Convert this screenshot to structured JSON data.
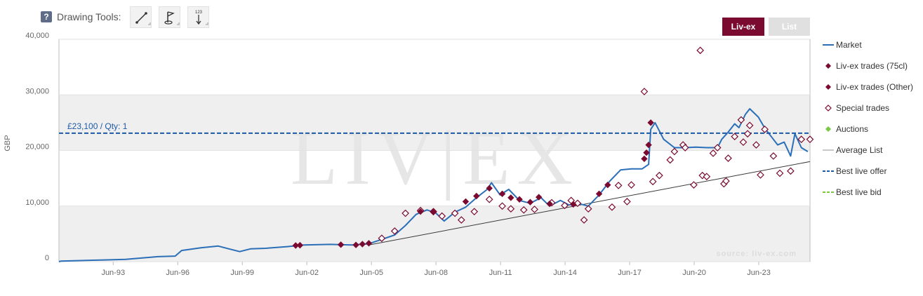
{
  "toolbar": {
    "help_label": "?",
    "title": "Drawing Tools:",
    "tools": [
      {
        "name": "line-tool",
        "label": ""
      },
      {
        "name": "flag-tool",
        "label": ""
      },
      {
        "name": "measure-tool",
        "label": "123"
      }
    ]
  },
  "view_toggle": {
    "livex_label": "Liv-ex",
    "list_label": "List"
  },
  "colors": {
    "market": "#2a6fb8",
    "trade": "#7a0a30",
    "auction": "#7ac943",
    "average": "#c8c8c8",
    "best_offer": "#1c5aa6",
    "best_bid": "#7ac943",
    "band": "#efefef"
  },
  "chart_data": {
    "type": "line",
    "ylabel": "GBP",
    "ylim": [
      0,
      40000
    ],
    "yticks": [
      0,
      10000,
      20000,
      30000,
      40000
    ],
    "ytick_labels": [
      "0",
      "10,000",
      "20,000",
      "30,000",
      "40,000"
    ],
    "xlim": [
      1990.9,
      2025.8
    ],
    "xticks": [
      1993.42,
      1996.42,
      1999.42,
      2002.42,
      2005.42,
      2008.42,
      2011.42,
      2014.42,
      2017.42,
      2020.42,
      2023.42
    ],
    "xtick_labels": [
      "Jun-93",
      "Jun-96",
      "Jun-99",
      "Jun-02",
      "Jun-05",
      "Jun-08",
      "Jun-11",
      "Jun-14",
      "Jun-17",
      "Jun-20",
      "Jun-23"
    ],
    "watermark": "LIV|EX",
    "source_text": "source: liv-ex.com",
    "best_offer": {
      "value": 23100,
      "label": "£23,100 / Qty: 1"
    },
    "legend": [
      "Market",
      "Liv-ex trades (75cl)",
      "Liv-ex trades (Other)",
      "Special trades",
      "Auctions",
      "Average List",
      "Best live offer",
      "Best live bid"
    ],
    "market": [
      [
        1990.9,
        0
      ],
      [
        1991,
        100
      ],
      [
        1993,
        300
      ],
      [
        1994,
        400
      ],
      [
        1995.5,
        900
      ],
      [
        1996.3,
        1000
      ],
      [
        1996.6,
        2000
      ],
      [
        1997.5,
        2500
      ],
      [
        1998.3,
        2800
      ],
      [
        1998.8,
        2300
      ],
      [
        1999.3,
        1800
      ],
      [
        1999.8,
        2300
      ],
      [
        2000.5,
        2400
      ],
      [
        2001.5,
        2700
      ],
      [
        2002.3,
        3000
      ],
      [
        2003.5,
        3100
      ],
      [
        2004.5,
        3000
      ],
      [
        2005.3,
        3200
      ],
      [
        2005.9,
        4000
      ],
      [
        2006.5,
        4800
      ],
      [
        2007.0,
        6500
      ],
      [
        2007.5,
        8500
      ],
      [
        2008.0,
        9300
      ],
      [
        2008.4,
        8800
      ],
      [
        2008.8,
        7300
      ],
      [
        2009.3,
        8900
      ],
      [
        2009.8,
        9800
      ],
      [
        2010.3,
        11500
      ],
      [
        2010.8,
        13000
      ],
      [
        2011.0,
        14200
      ],
      [
        2011.4,
        12000
      ],
      [
        2011.8,
        13000
      ],
      [
        2012.3,
        11000
      ],
      [
        2012.8,
        10500
      ],
      [
        2013.3,
        11500
      ],
      [
        2013.7,
        10000
      ],
      [
        2014.2,
        11000
      ],
      [
        2014.6,
        10200
      ],
      [
        2015.0,
        10500
      ],
      [
        2015.5,
        10000
      ],
      [
        2016.0,
        12000
      ],
      [
        2016.5,
        14500
      ],
      [
        2017.0,
        16500
      ],
      [
        2017.5,
        16700
      ],
      [
        2018.0,
        16700
      ],
      [
        2018.3,
        17500
      ],
      [
        2018.4,
        23800
      ],
      [
        2018.6,
        25000
      ],
      [
        2019.0,
        22000
      ],
      [
        2019.5,
        20500
      ],
      [
        2020.0,
        20500
      ],
      [
        2020.5,
        20600
      ],
      [
        2021.0,
        20500
      ],
      [
        2021.5,
        20500
      ],
      [
        2021.7,
        22000
      ],
      [
        2022.0,
        23300
      ],
      [
        2022.3,
        24800
      ],
      [
        2022.5,
        24100
      ],
      [
        2022.8,
        26500
      ],
      [
        2023.0,
        27500
      ],
      [
        2023.4,
        26000
      ],
      [
        2023.7,
        24000
      ],
      [
        2024.0,
        22500
      ],
      [
        2024.3,
        21000
      ],
      [
        2024.6,
        21500
      ],
      [
        2024.9,
        19000
      ],
      [
        2025.1,
        23000
      ],
      [
        2025.4,
        20500
      ],
      [
        2025.7,
        19800
      ]
    ],
    "average_list": [
      [
        2005.3,
        3000
      ],
      [
        2025.8,
        18000
      ]
    ],
    "liv_ex_trades": [
      [
        2001.9,
        2900
      ],
      [
        2002.1,
        2950
      ],
      [
        2004.0,
        3050
      ],
      [
        2004.7,
        3000
      ],
      [
        2005.0,
        3150
      ],
      [
        2005.3,
        3300
      ],
      [
        2007.7,
        9000
      ],
      [
        2008.3,
        8900
      ],
      [
        2009.8,
        10800
      ],
      [
        2010.3,
        11800
      ],
      [
        2010.9,
        13200
      ],
      [
        2011.5,
        12200
      ],
      [
        2011.9,
        11500
      ],
      [
        2012.3,
        11200
      ],
      [
        2012.8,
        10700
      ],
      [
        2013.2,
        11600
      ],
      [
        2013.7,
        10400
      ],
      [
        2014.8,
        10300
      ],
      [
        2016.0,
        12200
      ],
      [
        2016.4,
        13800
      ],
      [
        2018.1,
        18500
      ],
      [
        2018.2,
        19600
      ],
      [
        2018.3,
        21000
      ],
      [
        2018.4,
        25000
      ]
    ],
    "special_trades": [
      [
        2005.9,
        4200
      ],
      [
        2006.5,
        5500
      ],
      [
        2007.0,
        8700
      ],
      [
        2007.7,
        9200
      ],
      [
        2008.3,
        9000
      ],
      [
        2008.7,
        8200
      ],
      [
        2009.3,
        8700
      ],
      [
        2009.6,
        7500
      ],
      [
        2010.2,
        9000
      ],
      [
        2010.9,
        11200
      ],
      [
        2011.5,
        10000
      ],
      [
        2011.9,
        9500
      ],
      [
        2012.5,
        9300
      ],
      [
        2013.0,
        9400
      ],
      [
        2013.8,
        10600
      ],
      [
        2014.4,
        10100
      ],
      [
        2014.7,
        11000
      ],
      [
        2015.0,
        10500
      ],
      [
        2015.3,
        7500
      ],
      [
        2015.5,
        9500
      ],
      [
        2016.6,
        9800
      ],
      [
        2016.9,
        13700
      ],
      [
        2017.3,
        10800
      ],
      [
        2017.5,
        13800
      ],
      [
        2018.1,
        30600
      ],
      [
        2018.5,
        14400
      ],
      [
        2018.8,
        15500
      ],
      [
        2019.3,
        18300
      ],
      [
        2019.5,
        19800
      ],
      [
        2019.9,
        21000
      ],
      [
        2020.0,
        20500
      ],
      [
        2020.4,
        13800
      ],
      [
        2020.8,
        15500
      ],
      [
        2021.0,
        15300
      ],
      [
        2021.3,
        19500
      ],
      [
        2021.5,
        20500
      ],
      [
        2020.7,
        38000
      ],
      [
        2021.8,
        14000
      ],
      [
        2021.9,
        14500
      ],
      [
        2022.0,
        18600
      ],
      [
        2022.3,
        22500
      ],
      [
        2022.6,
        25500
      ],
      [
        2022.7,
        21500
      ],
      [
        2022.9,
        23000
      ],
      [
        2023.0,
        24500
      ],
      [
        2023.3,
        21000
      ],
      [
        2023.5,
        15600
      ],
      [
        2023.7,
        23800
      ],
      [
        2024.1,
        19000
      ],
      [
        2024.4,
        15900
      ],
      [
        2024.9,
        16300
      ],
      [
        2025.4,
        22000
      ],
      [
        2025.8,
        22000
      ]
    ]
  }
}
